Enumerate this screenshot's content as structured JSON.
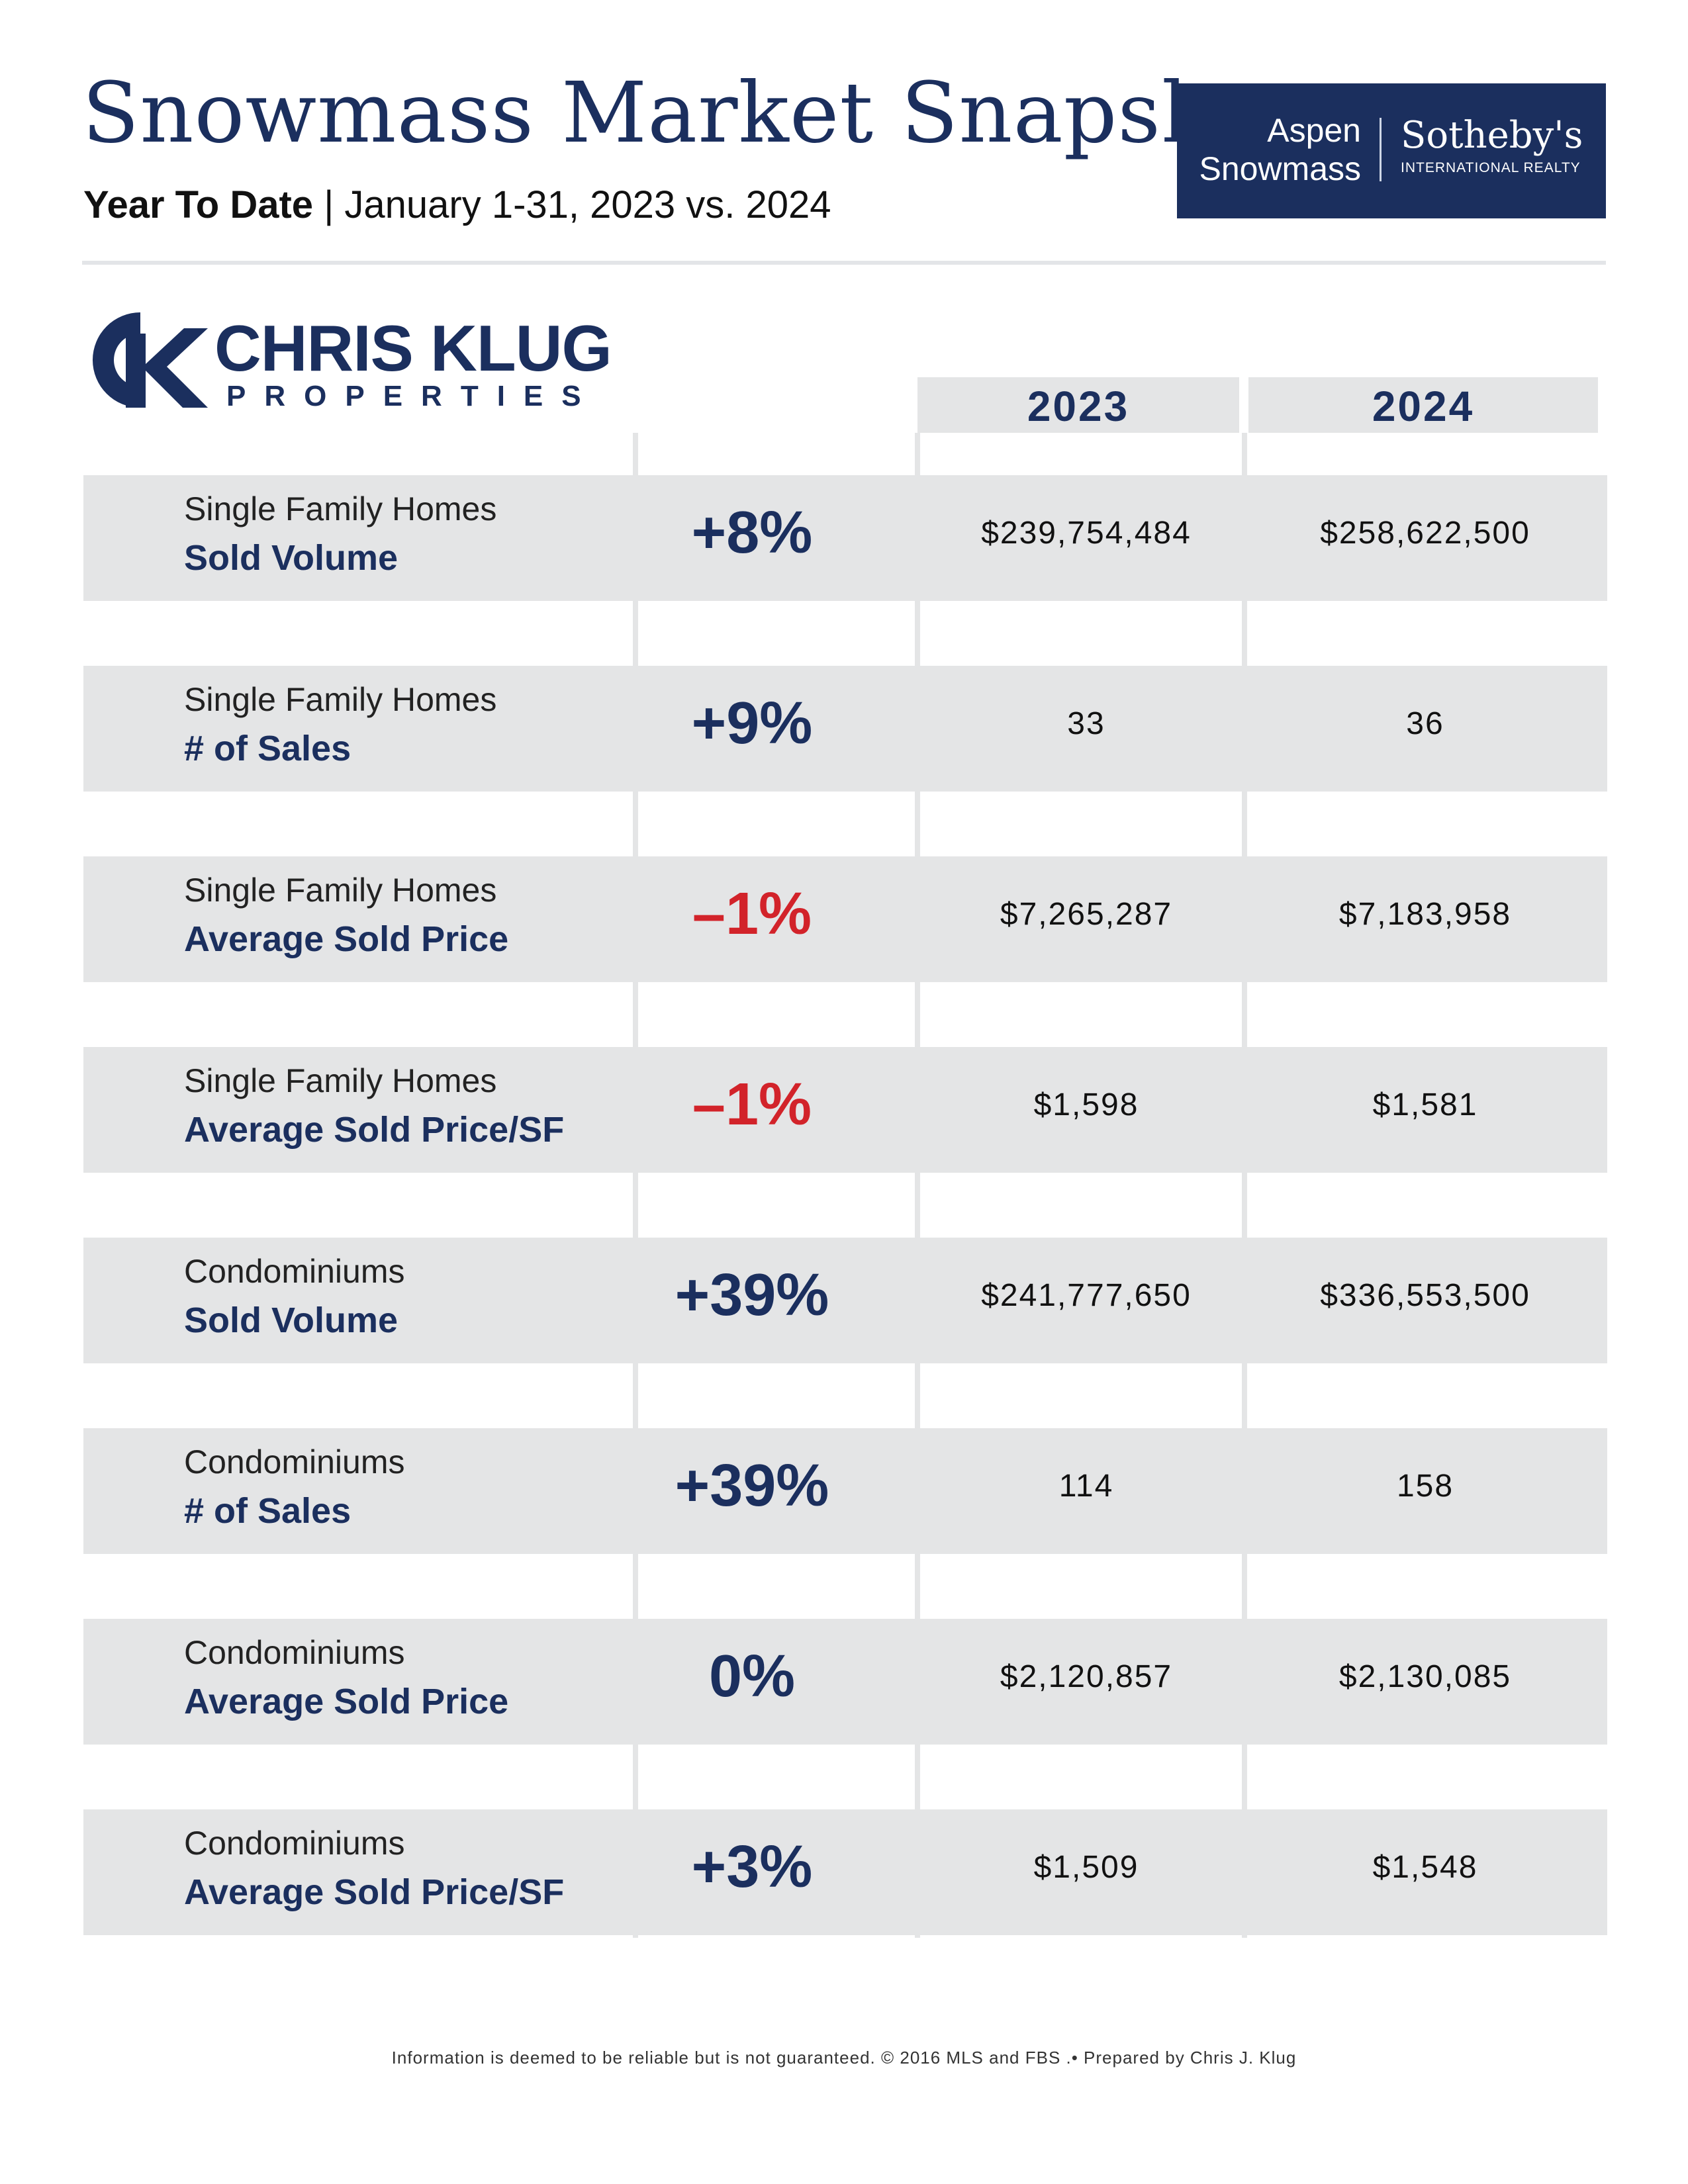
{
  "header": {
    "title": "Snowmass Market Snapshot",
    "subtitle_bold": "Year To Date",
    "subtitle_rest": " | January 1-31, 2023 vs. 2024"
  },
  "brand": {
    "line1": "Aspen",
    "line2": "Snowmass",
    "company": "Sotheby's",
    "tagline": "INTERNATIONAL REALTY"
  },
  "agent_logo": {
    "name": "CHRIS KLUG",
    "sub": "PROPERTIES"
  },
  "columns": {
    "year1": "2023",
    "year2": "2024"
  },
  "rows": [
    {
      "category": "Single Family Homes",
      "metric": "Sold Volume",
      "change": "+8%",
      "negative": false,
      "v2023": "$239,754,484",
      "v2024": "$258,622,500"
    },
    {
      "category": "Single Family Homes",
      "metric": "# of Sales",
      "change": "+9%",
      "negative": false,
      "v2023": "33",
      "v2024": "36"
    },
    {
      "category": "Single Family Homes",
      "metric": "Average Sold Price",
      "change": "–1%",
      "negative": true,
      "v2023": "$7,265,287",
      "v2024": "$7,183,958"
    },
    {
      "category": "Single Family Homes",
      "metric": "Average Sold Price/SF",
      "change": "–1%",
      "negative": true,
      "v2023": "$1,598",
      "v2024": "$1,581"
    },
    {
      "category": "Condominiums",
      "metric": "Sold Volume",
      "change": "+39%",
      "negative": false,
      "v2023": "$241,777,650",
      "v2024": "$336,553,500"
    },
    {
      "category": "Condominiums",
      "metric": "# of Sales",
      "change": "+39%",
      "negative": false,
      "v2023": "114",
      "v2024": "158"
    },
    {
      "category": "Condominiums",
      "metric": "Average Sold Price",
      "change": "0%",
      "negative": false,
      "v2023": "$2,120,857",
      "v2024": "$2,130,085"
    },
    {
      "category": "Condominiums",
      "metric": "Average Sold Price/SF",
      "change": "+3%",
      "negative": false,
      "v2023": "$1,509",
      "v2024": "$1,548"
    }
  ],
  "footer": "Information is deemed to be reliable but is not guaranteed. © 2016 MLS and FBS .• Prepared by Chris J. Klug",
  "colors": {
    "navy": "#1b2f5e",
    "negative": "#d2232a",
    "row_bg": "#e4e5e6"
  }
}
